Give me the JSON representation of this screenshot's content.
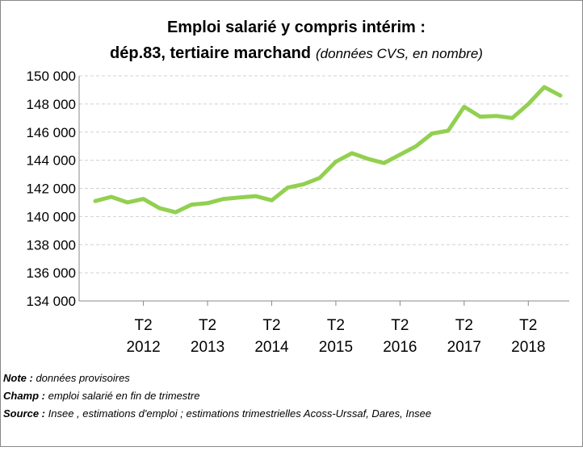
{
  "chart_data": {
    "type": "line",
    "title": "Emploi salarié y compris intérim :",
    "subtitle": "dép.83, tertiaire marchand",
    "subtitle_note": "(données CVS, en nombre)",
    "categories": [
      null,
      null,
      null,
      "T2 2012",
      null,
      null,
      null,
      "T2 2013",
      null,
      null,
      null,
      "T2 2014",
      null,
      null,
      null,
      "T2 2015",
      null,
      null,
      null,
      "T2 2016",
      null,
      null,
      null,
      "T2 2017",
      null,
      null,
      null,
      "T2 2018",
      null,
      null
    ],
    "series": [
      {
        "name": "Emploi salarié",
        "color": "#92d050",
        "values": [
          141100,
          141400,
          141000,
          141250,
          140600,
          140300,
          140850,
          140950,
          141250,
          141350,
          141450,
          141150,
          142050,
          142300,
          142750,
          143900,
          144500,
          144100,
          143800,
          144400,
          145000,
          145900,
          146100,
          147800,
          147100,
          147150,
          147000,
          148000,
          149200,
          148600
        ]
      }
    ],
    "ylim": [
      134000,
      150000
    ],
    "yticks": [
      {
        "value": 134000,
        "label": "134 000"
      },
      {
        "value": 136000,
        "label": "136 000"
      },
      {
        "value": 138000,
        "label": "138 000"
      },
      {
        "value": 140000,
        "label": "140 000"
      },
      {
        "value": 142000,
        "label": "142 000"
      },
      {
        "value": 144000,
        "label": "144 000"
      },
      {
        "value": 146000,
        "label": "146 000"
      },
      {
        "value": 148000,
        "label": "148 000"
      },
      {
        "value": 150000,
        "label": "150 000"
      }
    ],
    "grid": true,
    "notes": [
      {
        "label": "Note :",
        "text": " données provisoires"
      },
      {
        "label": "Champ :",
        "text": " emploi salarié en fin de trimestre"
      },
      {
        "label": "Source :",
        "text": " Insee , estimations d'emploi ; estimations trimestrielles Acoss-Urssaf, Dares, Insee"
      }
    ]
  }
}
